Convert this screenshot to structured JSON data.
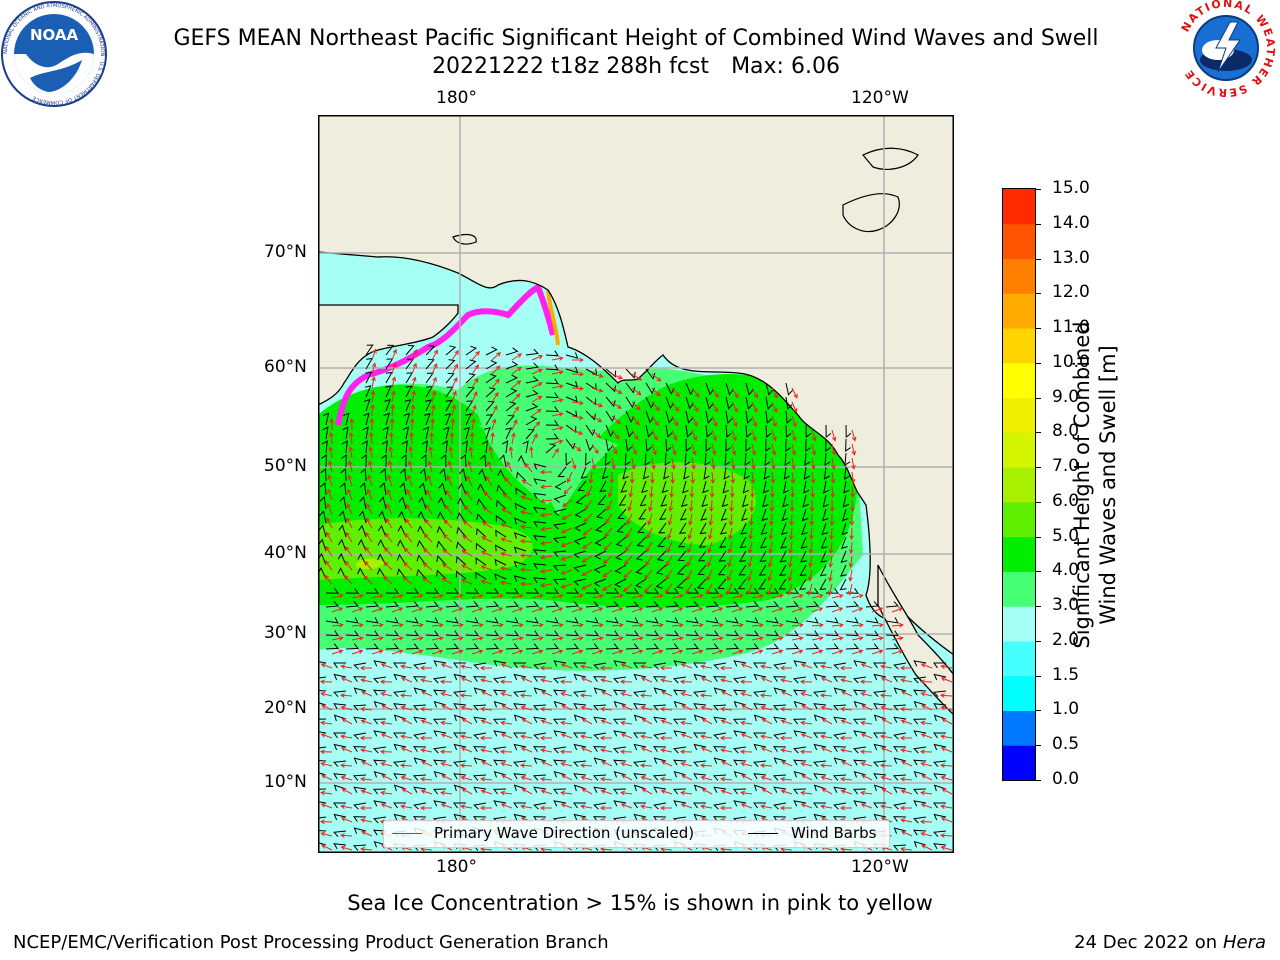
{
  "header": {
    "title_line1": "GEFS MEAN Northeast Pacific Significant Height of Combined Wind Waves and Swell",
    "title_date_run": "20221222 t18z 288h fcst",
    "title_max": "Max: 6.06"
  },
  "logos": {
    "left_name": "NOAA",
    "left_ring_text": "NATIONAL OCEANIC AND ATMOSPHERIC ADMINISTRATION · U.S. DEPARTMENT OF COMMERCE",
    "right_ring_text": "NATIONAL WEATHER SERVICE"
  },
  "map": {
    "top_lon_labels": [
      "180°",
      "120°W"
    ],
    "bottom_lon_labels": [
      "180°",
      "120°W"
    ],
    "lat_labels": [
      "70°N",
      "60°N",
      "50°N",
      "40°N",
      "30°N",
      "20°N",
      "10°N"
    ],
    "colors": {
      "land": "#efeddd",
      "ocean_low": "#a5fff5",
      "ocean_mid": "#46ff73",
      "ocean_high": "#00ee00",
      "ocean_higher": "#5ef000",
      "sea_ice": "#ff22ee",
      "wave_arrow": "#ee2222",
      "wind_barb": "#000000",
      "gridline": "#b0b0b0"
    }
  },
  "legend": {
    "wave_label": "Primary Wave Direction (unscaled)",
    "wind_label": "Wind Barbs"
  },
  "colorbar": {
    "title_line1": "Significant Height of Combined",
    "title_line2": "Wind Waves and Swell [m]",
    "ticks": [
      "15.0",
      "14.0",
      "13.0",
      "12.0",
      "11.0",
      "10.0",
      "9.0",
      "8.0",
      "7.0",
      "6.0",
      "5.0",
      "4.0",
      "3.0",
      "2.0",
      "1.5",
      "1.0",
      "0.5",
      "0.0"
    ],
    "colors_bottom_to_top": [
      "#0000ff",
      "#0078ff",
      "#00ffff",
      "#46ffff",
      "#a5fff5",
      "#46ff73",
      "#00ee00",
      "#5ef000",
      "#a8f000",
      "#d4f500",
      "#f0f000",
      "#ffff00",
      "#ffd400",
      "#ffaa00",
      "#ff8000",
      "#ff5500",
      "#ff2a00"
    ]
  },
  "note": "Sea Ice Concentration > 15% is shown in pink to yellow",
  "footer": {
    "left": "NCEP/EMC/Verification Post Processing Product Generation Branch",
    "right_date": "24 Dec 2022 on",
    "right_machine": "Hera"
  }
}
